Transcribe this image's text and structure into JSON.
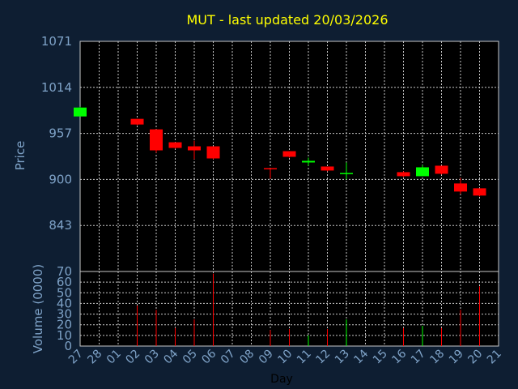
{
  "chart_data": {
    "type": "candlestick",
    "title": "MUT - last updated 20/03/2026",
    "xlabel": "Day",
    "ylabel_price": "Price",
    "ylabel_volume": "Volume (0000)",
    "x_ticks": [
      "27",
      "28",
      "01",
      "02",
      "03",
      "04",
      "05",
      "06",
      "07",
      "08",
      "09",
      "10",
      "11",
      "12",
      "13",
      "14",
      "15",
      "16",
      "17",
      "18",
      "19",
      "20",
      "21"
    ],
    "price_ticks": [
      "1071",
      "1014",
      "957",
      "900",
      "843"
    ],
    "price_ylim": [
      786,
      1071
    ],
    "volume_ticks": [
      "70",
      "60",
      "50",
      "40",
      "30",
      "20",
      "10",
      "0"
    ],
    "volume_ylim": [
      0,
      70
    ],
    "grid": true,
    "colors": {
      "up": "#00ff00",
      "down": "#ff0000",
      "background": "#0e1e32",
      "panel": "#000000",
      "grid": "#c8c8c8",
      "title": "#ffff00",
      "axis_text": "#7fa3c8"
    },
    "candles": [
      {
        "day": "27",
        "open": 978,
        "high": 990,
        "low": 978,
        "close": 989,
        "volume": 0
      },
      {
        "day": "02",
        "open": 975,
        "high": 975,
        "low": 967,
        "close": 968,
        "volume": 38
      },
      {
        "day": "03",
        "open": 962,
        "high": 962,
        "low": 933,
        "close": 936,
        "volume": 34
      },
      {
        "day": "04",
        "open": 946,
        "high": 946,
        "low": 938,
        "close": 939,
        "volume": 17
      },
      {
        "day": "05",
        "open": 941,
        "high": 948,
        "low": 925,
        "close": 936,
        "volume": 25
      },
      {
        "day": "06",
        "open": 941,
        "high": 941,
        "low": 925,
        "close": 926,
        "volume": 68
      },
      {
        "day": "09",
        "open": 914,
        "high": 914,
        "low": 901,
        "close": 913,
        "volume": 15
      },
      {
        "day": "10",
        "open": 935,
        "high": 935,
        "low": 927,
        "close": 928,
        "volume": 16
      },
      {
        "day": "11",
        "open": 921,
        "high": 927,
        "low": 917,
        "close": 923,
        "volume": 10
      },
      {
        "day": "12",
        "open": 916,
        "high": 916,
        "low": 910,
        "close": 911,
        "volume": 16
      },
      {
        "day": "13",
        "open": 907,
        "high": 921,
        "low": 900,
        "close": 908,
        "volume": 25
      },
      {
        "day": "16",
        "open": 909,
        "high": 910,
        "low": 903,
        "close": 904,
        "volume": 17
      },
      {
        "day": "17",
        "open": 904,
        "high": 918,
        "low": 904,
        "close": 915,
        "volume": 19
      },
      {
        "day": "18",
        "open": 917,
        "high": 917,
        "low": 906,
        "close": 907,
        "volume": 17
      },
      {
        "day": "19",
        "open": 895,
        "high": 902,
        "low": 882,
        "close": 885,
        "volume": 34
      },
      {
        "day": "20",
        "open": 889,
        "high": 889,
        "low": 879,
        "close": 880,
        "volume": 56
      }
    ]
  }
}
